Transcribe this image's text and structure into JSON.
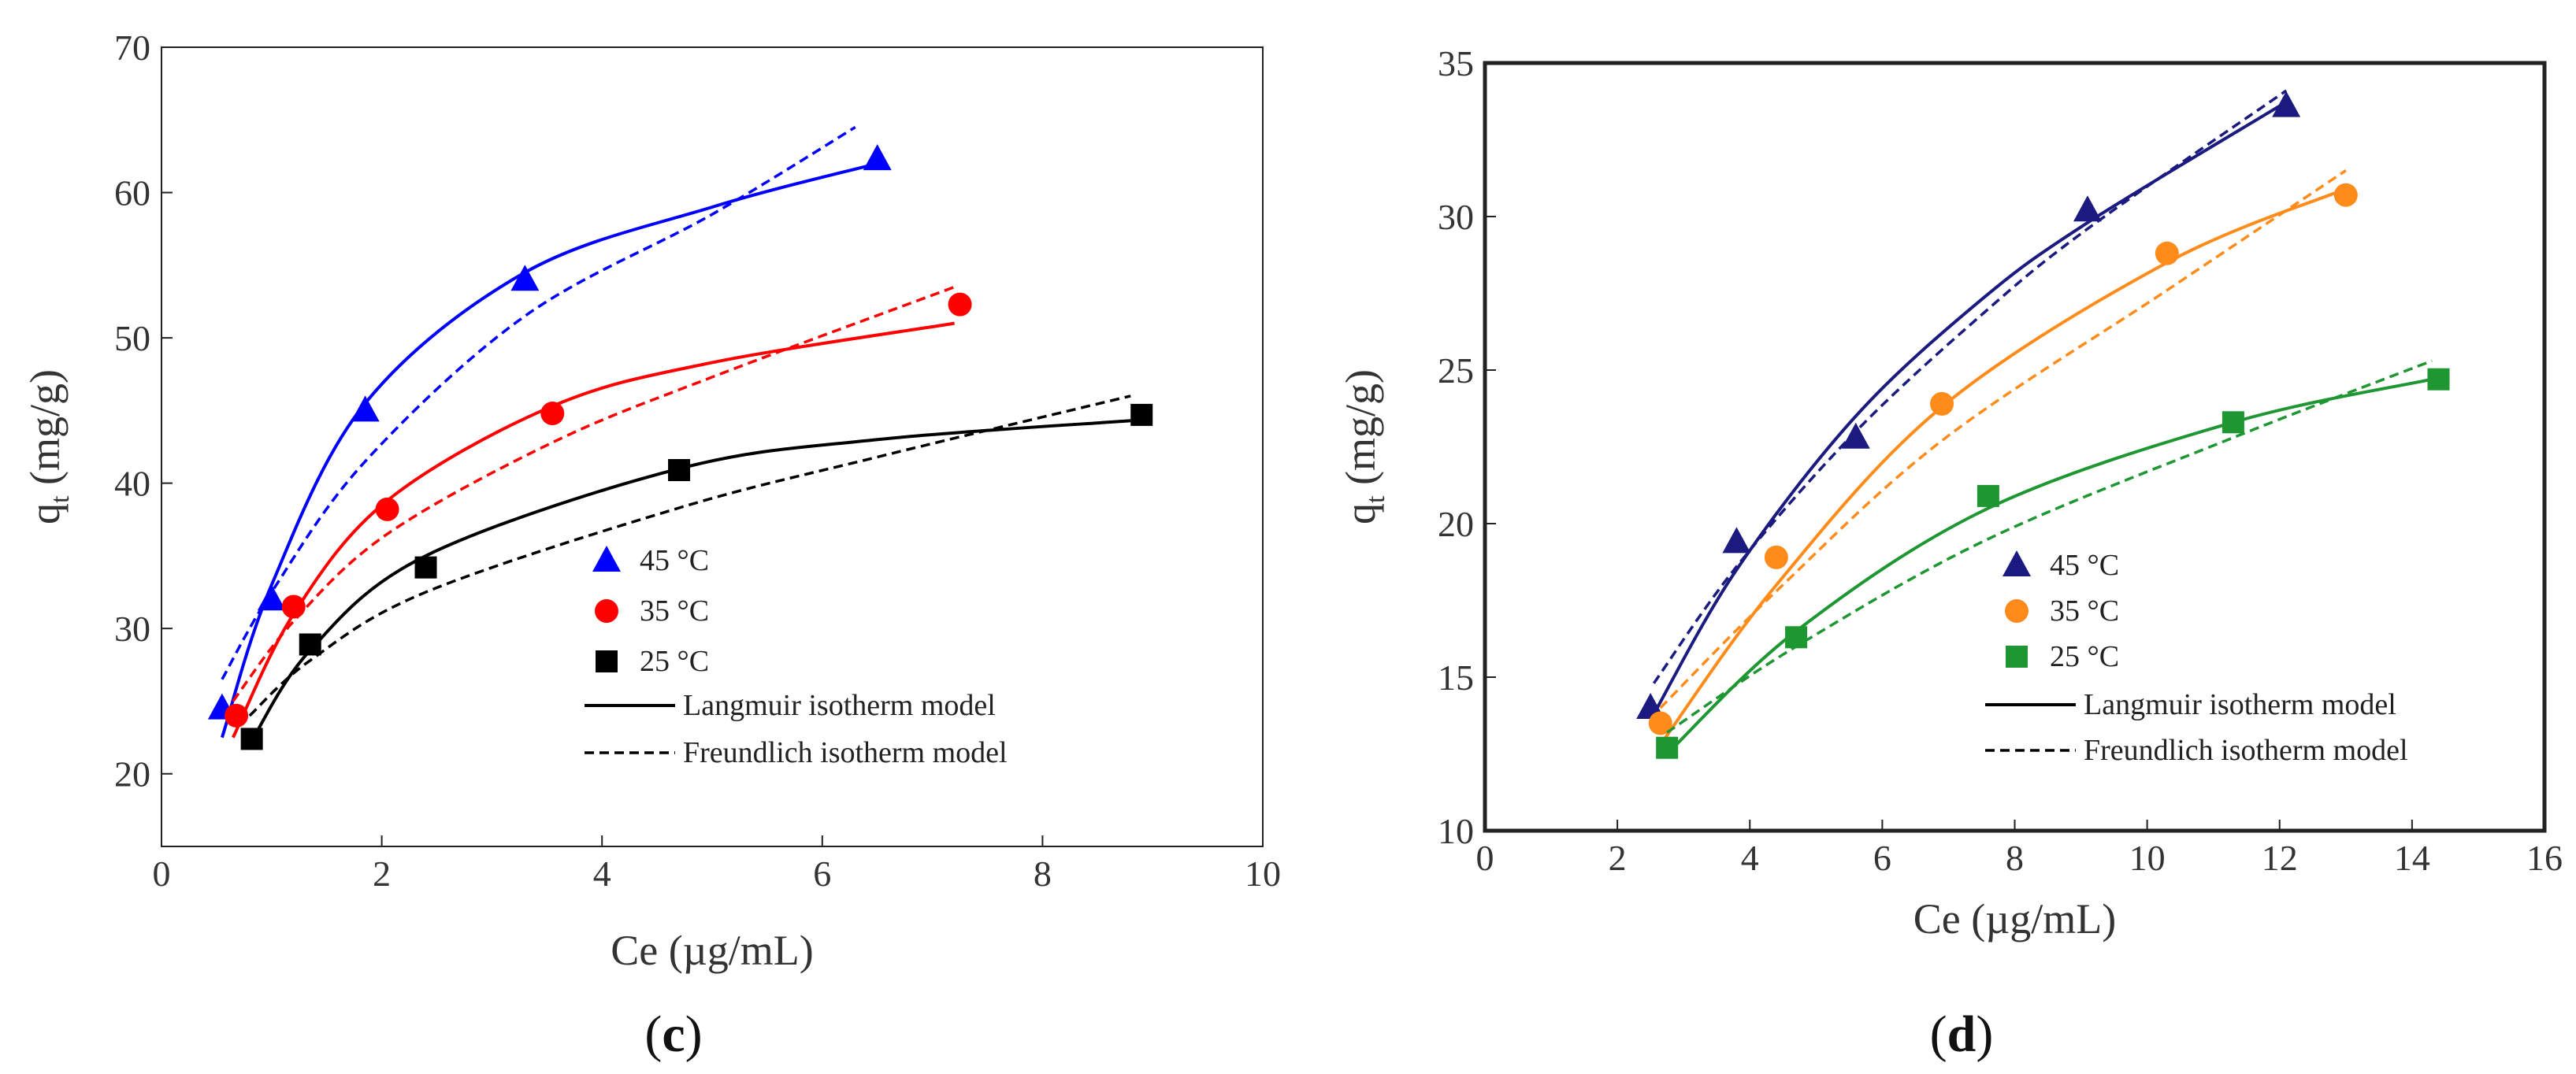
{
  "chart_data": [
    {
      "type": "scatter",
      "panel_label": "c",
      "xlabel": "Ce (µg/mL)",
      "ylabel_main": "q",
      "ylabel_sub": "t",
      "ylabel_unit": " (mg/g)",
      "xlim": [
        0,
        10
      ],
      "ylim": [
        15,
        70
      ],
      "xticks": [
        0,
        2,
        4,
        6,
        8,
        10
      ],
      "yticks": [
        20,
        30,
        40,
        50,
        60,
        70
      ],
      "grid": false,
      "legend_position": "center-right",
      "series": [
        {
          "name": "45 °C",
          "color": "#0000ff",
          "marker": "triangle",
          "points": [
            [
              0.55,
              24.5
            ],
            [
              1.0,
              32.0
            ],
            [
              1.85,
              45.0
            ],
            [
              3.3,
              54.0
            ],
            [
              6.5,
              62.3
            ]
          ],
          "langmuir": [
            [
              0.55,
              22.5
            ],
            [
              1.0,
              33.0
            ],
            [
              1.85,
              45.5
            ],
            [
              3.3,
              54.5
            ],
            [
              5.0,
              59.0
            ],
            [
              6.5,
              62.0
            ]
          ],
          "freundlich": [
            [
              0.55,
              26.5
            ],
            [
              1.0,
              32.5
            ],
            [
              1.85,
              41.5
            ],
            [
              3.3,
              51.5
            ],
            [
              5.0,
              58.5
            ],
            [
              6.3,
              64.5
            ]
          ]
        },
        {
          "name": "35 °C",
          "color": "#ff0000",
          "marker": "circle",
          "points": [
            [
              0.68,
              24.0
            ],
            [
              1.2,
              31.5
            ],
            [
              2.05,
              38.2
            ],
            [
              3.55,
              44.8
            ],
            [
              7.25,
              52.3
            ]
          ],
          "langmuir": [
            [
              0.65,
              22.5
            ],
            [
              1.2,
              31.0
            ],
            [
              2.05,
              38.8
            ],
            [
              3.55,
              45.3
            ],
            [
              5.0,
              48.3
            ],
            [
              7.2,
              51.0
            ]
          ],
          "freundlich": [
            [
              0.65,
              25.0
            ],
            [
              1.2,
              30.5
            ],
            [
              2.05,
              36.5
            ],
            [
              3.55,
              42.8
            ],
            [
              5.0,
              47.3
            ],
            [
              7.2,
              53.5
            ]
          ]
        },
        {
          "name": "25 °C",
          "color": "#000000",
          "marker": "square",
          "points": [
            [
              0.82,
              22.4
            ],
            [
              1.35,
              28.9
            ],
            [
              2.4,
              34.2
            ],
            [
              4.7,
              40.9
            ],
            [
              8.9,
              44.7
            ]
          ],
          "langmuir": [
            [
              0.8,
              22.0
            ],
            [
              1.35,
              28.5
            ],
            [
              2.4,
              35.0
            ],
            [
              4.7,
              41.0
            ],
            [
              6.5,
              43.0
            ],
            [
              8.8,
              44.3
            ]
          ],
          "freundlich": [
            [
              0.8,
              24.0
            ],
            [
              1.35,
              27.8
            ],
            [
              2.4,
              32.5
            ],
            [
              4.7,
              38.3
            ],
            [
              6.5,
              41.8
            ],
            [
              8.8,
              46.0
            ]
          ]
        }
      ],
      "legend": {
        "entries": [
          "45 °C",
          "35 °C",
          "25 °C"
        ],
        "langmuir_label": "Langmuir isotherm model",
        "freundlich_label": "Freundlich isotherm model"
      }
    },
    {
      "type": "scatter",
      "panel_label": "d",
      "xlabel": "Ce (µg/mL)",
      "ylabel_main": "q",
      "ylabel_sub": "t",
      "ylabel_unit": " (mg/g)",
      "xlim": [
        0,
        16
      ],
      "ylim": [
        10,
        35
      ],
      "xticks": [
        0,
        2,
        4,
        6,
        8,
        10,
        12,
        14,
        16
      ],
      "yticks": [
        10,
        15,
        20,
        25,
        30,
        35
      ],
      "grid": false,
      "legend_position": "center-right",
      "series": [
        {
          "name": "45 °C",
          "color": "#1a1a80",
          "marker": "triangle",
          "points": [
            [
              2.5,
              14.0
            ],
            [
              3.8,
              19.4
            ],
            [
              5.6,
              22.8
            ],
            [
              9.1,
              30.2
            ],
            [
              12.1,
              33.6
            ]
          ],
          "langmuir": [
            [
              2.55,
              13.8
            ],
            [
              3.8,
              18.5
            ],
            [
              5.6,
              23.5
            ],
            [
              7.5,
              27.3
            ],
            [
              9.1,
              29.8
            ],
            [
              12.0,
              33.6
            ]
          ],
          "freundlich": [
            [
              2.55,
              14.8
            ],
            [
              3.8,
              18.6
            ],
            [
              5.6,
              23.0
            ],
            [
              7.5,
              26.8
            ],
            [
              9.1,
              29.6
            ],
            [
              12.1,
              34.1
            ]
          ]
        },
        {
          "name": "35 °C",
          "color": "#ff8c1a",
          "marker": "circle",
          "points": [
            [
              2.65,
              13.5
            ],
            [
              4.4,
              18.9
            ],
            [
              6.9,
              23.9
            ],
            [
              10.3,
              28.8
            ],
            [
              13.0,
              30.7
            ]
          ],
          "langmuir": [
            [
              2.65,
              12.8
            ],
            [
              4.4,
              18.0
            ],
            [
              6.9,
              23.8
            ],
            [
              10.3,
              28.5
            ],
            [
              13.0,
              30.9
            ]
          ],
          "freundlich": [
            [
              2.65,
              14.0
            ],
            [
              4.4,
              17.8
            ],
            [
              6.9,
              22.7
            ],
            [
              10.3,
              27.6
            ],
            [
              13.0,
              31.5
            ]
          ]
        },
        {
          "name": "25 °C",
          "color": "#1e9632",
          "marker": "square",
          "points": [
            [
              2.75,
              12.7
            ],
            [
              4.7,
              16.3
            ],
            [
              7.6,
              20.9
            ],
            [
              11.3,
              23.3
            ],
            [
              14.4,
              24.7
            ]
          ],
          "langmuir": [
            [
              2.75,
              12.5
            ],
            [
              4.7,
              16.5
            ],
            [
              7.6,
              20.5
            ],
            [
              11.3,
              23.3
            ],
            [
              14.3,
              24.7
            ]
          ],
          "freundlich": [
            [
              2.75,
              13.2
            ],
            [
              4.7,
              16.0
            ],
            [
              7.6,
              19.5
            ],
            [
              11.3,
              22.8
            ],
            [
              14.3,
              25.3
            ]
          ]
        }
      ],
      "legend": {
        "entries": [
          "45 °C",
          "35 °C",
          "25 °C"
        ],
        "langmuir_label": "Langmuir isotherm model",
        "freundlich_label": "Freundlich isotherm model"
      }
    }
  ]
}
